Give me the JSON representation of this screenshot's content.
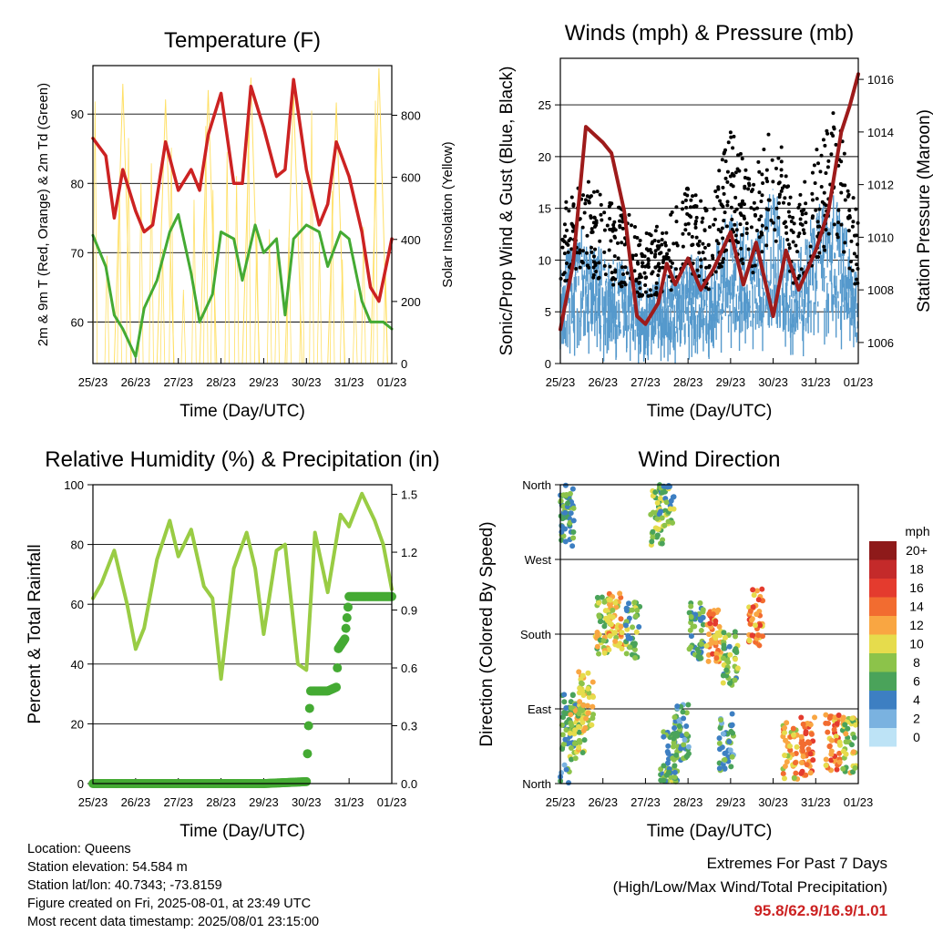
{
  "colors": {
    "temp": "#cc2222",
    "dew": "#44aa33",
    "solar": "#ffe066",
    "wind": "#5599cc",
    "gust": "#000000",
    "pressure": "#9e1b1b",
    "rh": "#99cc44",
    "precip": "#44aa33"
  },
  "chart_data": [
    {
      "type": "line",
      "title": "Temperature (F)",
      "xlabel": "Time (Day/UTC)",
      "ylabel": "2m & 9m T (Red, Orange) & 2m Td (Green)",
      "ylabel_right": "Solar Insolation (Yellow)",
      "x_ticks": [
        "25/23",
        "26/23",
        "27/23",
        "28/23",
        "29/23",
        "30/23",
        "31/23",
        "01/23"
      ],
      "ylim": [
        54,
        97
      ],
      "y_ticks": [
        60,
        70,
        80,
        90
      ],
      "ylim_right": [
        0,
        960
      ],
      "y_ticks_right": [
        0,
        200,
        400,
        600,
        800
      ],
      "grid": "horizontal",
      "series": [
        {
          "role": "temp",
          "x": [
            0,
            0.3,
            0.5,
            0.7,
            1.0,
            1.2,
            1.4,
            1.7,
            2.0,
            2.3,
            2.5,
            2.7,
            3.0,
            3.3,
            3.5,
            3.7,
            4.0,
            4.3,
            4.5,
            4.7,
            5.0,
            5.3,
            5.5,
            5.7,
            6.0,
            6.3,
            6.5,
            6.7,
            7.0
          ],
          "values": [
            86.5,
            84,
            75,
            82,
            76,
            73,
            74,
            86,
            79,
            82,
            79,
            87,
            93,
            80,
            80,
            94,
            88,
            81,
            82,
            95,
            82,
            74,
            77,
            86,
            81,
            73,
            65,
            63,
            72
          ]
        },
        {
          "role": "dew",
          "x": [
            0,
            0.3,
            0.5,
            0.7,
            1.0,
            1.2,
            1.5,
            1.8,
            2.0,
            2.3,
            2.5,
            2.8,
            3.0,
            3.3,
            3.5,
            3.8,
            4.0,
            4.3,
            4.5,
            4.7,
            5.0,
            5.3,
            5.5,
            5.8,
            6.0,
            6.3,
            6.5,
            6.8,
            7.0
          ],
          "values": [
            72.5,
            68,
            61,
            59,
            55,
            62,
            66,
            73,
            75.5,
            67,
            60,
            64,
            73,
            72,
            66,
            74,
            70,
            72,
            61,
            72,
            74,
            73,
            68,
            73,
            72,
            63,
            60,
            60,
            59
          ]
        },
        {
          "role": "solar",
          "x": [
            0.5,
            0.7,
            0.9,
            1.5,
            1.7,
            1.9,
            2.5,
            2.7,
            2.9,
            3.5,
            3.7,
            3.9,
            4.5,
            4.7,
            4.9,
            5.5,
            5.7,
            5.9,
            6.5,
            6.7,
            6.9
          ],
          "values": [
            0,
            900,
            0,
            0,
            850,
            0,
            0,
            880,
            0,
            0,
            920,
            0,
            0,
            870,
            0,
            0,
            840,
            0,
            0,
            950,
            0
          ]
        }
      ]
    },
    {
      "type": "scatter",
      "title": "Winds (mph) & Pressure (mb)",
      "xlabel": "Time (Day/UTC)",
      "ylabel": "Sonic/Prop Wind & Gust (Blue, Black)",
      "ylabel_right": "Station Pressure (Maroon)",
      "x_ticks": [
        "25/23",
        "26/23",
        "27/23",
        "28/23",
        "29/23",
        "30/23",
        "31/23",
        "01/23"
      ],
      "ylim": [
        0,
        29.5
      ],
      "y_ticks": [
        0,
        5,
        10,
        15,
        20,
        25
      ],
      "ylim_right": [
        1005.2,
        1016.8
      ],
      "y_ticks_right": [
        1006,
        1008,
        1010,
        1012,
        1014,
        1016
      ],
      "grid": "horizontal",
      "series": [
        {
          "role": "wind_envelope",
          "x": [
            0,
            0.5,
            1.0,
            1.5,
            2.0,
            2.5,
            3.0,
            3.5,
            4.0,
            4.5,
            5.0,
            5.5,
            6.0,
            6.5,
            7.0
          ],
          "values": [
            9,
            12,
            10,
            9,
            7,
            8,
            10,
            9,
            14,
            11,
            16,
            9,
            14,
            15,
            8
          ]
        },
        {
          "role": "gust_envelope",
          "x": [
            0,
            0.5,
            1.0,
            1.5,
            2.0,
            2.5,
            3.0,
            3.5,
            4.0,
            4.5,
            5.0,
            5.5,
            6.0,
            6.5,
            7.0
          ],
          "values": [
            13,
            16,
            14,
            13,
            11,
            12,
            15,
            13,
            20,
            15,
            22,
            13,
            18,
            22,
            12
          ]
        },
        {
          "role": "pressure",
          "x": [
            0,
            0.3,
            0.6,
            1.0,
            1.2,
            1.5,
            1.8,
            2.0,
            2.3,
            2.5,
            2.7,
            3.0,
            3.3,
            3.6,
            4.0,
            4.3,
            4.6,
            5.0,
            5.3,
            5.6,
            6.0,
            6.3,
            6.6,
            6.8,
            7.0
          ],
          "values": [
            1006.5,
            1009,
            1014.2,
            1013.6,
            1013.2,
            1011,
            1007,
            1006.7,
            1007.5,
            1009,
            1008.2,
            1009.2,
            1008,
            1008.8,
            1010.2,
            1008.2,
            1009.8,
            1007,
            1009.5,
            1008,
            1009.5,
            1011,
            1014,
            1015,
            1016.2
          ]
        }
      ]
    },
    {
      "type": "line",
      "title": "Relative Humidity (%) & Precipitation (in)",
      "xlabel": "Time (Day/UTC)",
      "ylabel": "Percent & Total Rainfall",
      "x_ticks": [
        "25/23",
        "26/23",
        "27/23",
        "28/23",
        "29/23",
        "30/23",
        "31/23",
        "01/23"
      ],
      "ylim": [
        0,
        100
      ],
      "y_ticks": [
        0,
        20,
        40,
        60,
        80,
        100
      ],
      "ylim_right": [
        0,
        1.55
      ],
      "y_ticks_right": [
        "0.0",
        "0.3",
        "0.6",
        "0.9",
        "1.2",
        "1.5"
      ],
      "grid": "horizontal",
      "series": [
        {
          "role": "rh",
          "x": [
            0,
            0.2,
            0.5,
            0.8,
            1.0,
            1.2,
            1.5,
            1.8,
            2.0,
            2.3,
            2.6,
            2.8,
            3.0,
            3.3,
            3.6,
            3.8,
            4.0,
            4.3,
            4.5,
            4.8,
            5.0,
            5.2,
            5.5,
            5.8,
            6.0,
            6.3,
            6.6,
            6.8,
            7.0
          ],
          "values": [
            62,
            67,
            78,
            60,
            45,
            52,
            75,
            88,
            76,
            85,
            66,
            62,
            35,
            72,
            84,
            72,
            50,
            78,
            80,
            40,
            38,
            84,
            64,
            90,
            86,
            97,
            88,
            80,
            65
          ]
        },
        {
          "role": "precip",
          "x": [
            0,
            1.0,
            2.0,
            3.0,
            4.0,
            5.0,
            5.05,
            5.1,
            5.5,
            5.7,
            5.75,
            5.9,
            6.0,
            6.5,
            7.0
          ],
          "values": [
            0.0,
            0.0,
            0.0,
            0.0,
            0.0,
            0.01,
            0.3,
            0.48,
            0.48,
            0.5,
            0.7,
            0.75,
            0.97,
            0.97,
            0.97
          ]
        }
      ]
    },
    {
      "type": "scatter",
      "title": "Wind Direction",
      "xlabel": "Time (Day/UTC)",
      "ylabel": "Direction (Colored By Speed)",
      "x_ticks": [
        "25/23",
        "26/23",
        "27/23",
        "28/23",
        "29/23",
        "30/23",
        "31/23",
        "01/23"
      ],
      "y_ticks": [
        "North",
        "East",
        "South",
        "West",
        "North"
      ],
      "ylim": [
        0,
        360
      ],
      "grid": "horizontal",
      "legend": {
        "title": "mph",
        "placement": "right",
        "labels": [
          "20+",
          "18",
          "16",
          "14",
          "12",
          "10",
          "8",
          "6",
          "4",
          "2",
          "0"
        ],
        "colors": [
          "#8e1a1a",
          "#c42a2a",
          "#e43b2e",
          "#f26c30",
          "#f9a642",
          "#e6dc4c",
          "#8cc34a",
          "#4aa35a",
          "#3d7fc2",
          "#7ab2e0",
          "#bde3f6"
        ]
      },
      "clusters": [
        {
          "x": 0.05,
          "dir": 350,
          "speed": 5
        },
        {
          "x": 0.15,
          "dir": 320,
          "speed": 6
        },
        {
          "x": 0.2,
          "dir": 75,
          "speed": 6
        },
        {
          "x": 0.4,
          "dir": 60,
          "speed": 9
        },
        {
          "x": 0.6,
          "dir": 100,
          "speed": 10
        },
        {
          "x": 1.0,
          "dir": 190,
          "speed": 9
        },
        {
          "x": 1.3,
          "dir": 195,
          "speed": 11
        },
        {
          "x": 1.7,
          "dir": 185,
          "speed": 7
        },
        {
          "x": 2.3,
          "dir": 320,
          "speed": 8
        },
        {
          "x": 2.5,
          "dir": 345,
          "speed": 7
        },
        {
          "x": 2.6,
          "dir": 30,
          "speed": 6
        },
        {
          "x": 2.85,
          "dir": 60,
          "speed": 5
        },
        {
          "x": 3.2,
          "dir": 185,
          "speed": 6
        },
        {
          "x": 3.6,
          "dir": 180,
          "speed": 13
        },
        {
          "x": 3.9,
          "dir": 50,
          "speed": 5
        },
        {
          "x": 4.0,
          "dir": 150,
          "speed": 7
        },
        {
          "x": 4.6,
          "dir": 200,
          "speed": 13
        },
        {
          "x": 5.4,
          "dir": 40,
          "speed": 11
        },
        {
          "x": 5.8,
          "dir": 45,
          "speed": 14
        },
        {
          "x": 6.4,
          "dir": 50,
          "speed": 13
        },
        {
          "x": 6.8,
          "dir": 45,
          "speed": 9
        }
      ]
    }
  ],
  "info": {
    "location": "Location: Queens",
    "elevation": "Station elevation: 54.584 m",
    "latlon": "Station lat/lon: 40.7343; -73.8159",
    "created": "Figure created on Fri, 2025-08-01, at 23:49 UTC",
    "recent": "Most recent data timestamp: 2025/08/01 23:15:00"
  },
  "extremes": {
    "line1": "Extremes For Past 7 Days",
    "line2": "(High/Low/Max Wind/Total Precipitation)",
    "values": "95.8/62.9/16.9/1.01"
  }
}
